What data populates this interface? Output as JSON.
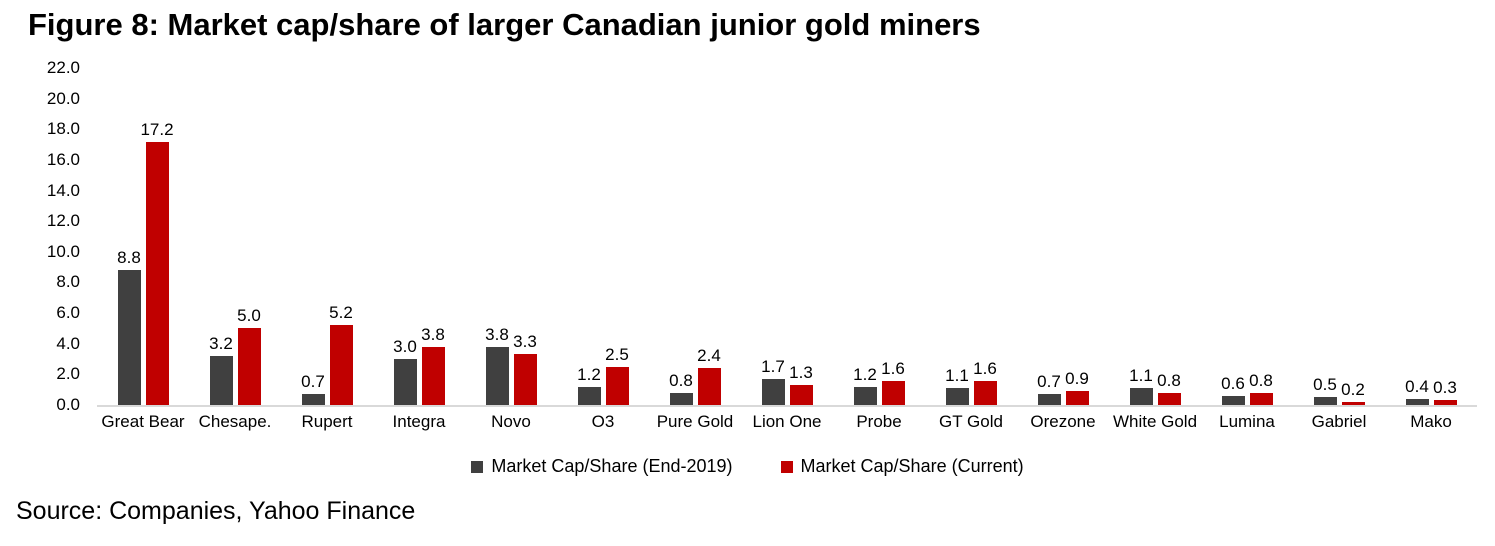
{
  "figure": {
    "title": "Figure 8: Market cap/share of larger Canadian junior gold miners",
    "source": "Source: Companies, Yahoo Finance"
  },
  "chart_data": {
    "type": "bar",
    "title": "Figure 8: Market cap/share of larger Canadian junior gold miners",
    "categories": [
      "Great Bear",
      "Chesape.",
      "Rupert",
      "Integra",
      "Novo",
      "O3",
      "Pure Gold",
      "Lion One",
      "Probe",
      "GT Gold",
      "Orezone",
      "White Gold",
      "Lumina",
      "Gabriel",
      "Mako"
    ],
    "series": [
      {
        "name": "Market Cap/Share (End-2019)",
        "color": "#404040",
        "values": [
          8.8,
          3.2,
          0.7,
          3.0,
          3.8,
          1.2,
          0.8,
          1.7,
          1.2,
          1.1,
          0.7,
          1.1,
          0.6,
          0.5,
          0.4
        ]
      },
      {
        "name": "Market Cap/Share (Current)",
        "color": "#c00000",
        "values": [
          17.2,
          5.0,
          5.2,
          3.8,
          3.3,
          2.5,
          2.4,
          1.3,
          1.6,
          1.6,
          0.9,
          0.8,
          0.8,
          0.2,
          0.3
        ]
      }
    ],
    "xlabel": "",
    "ylabel": "",
    "ylim": [
      0,
      22
    ],
    "ytick_step": 2,
    "ytick_labels": [
      "0.0",
      "2.0",
      "4.0",
      "6.0",
      "8.0",
      "10.0",
      "12.0",
      "14.0",
      "16.0",
      "18.0",
      "20.0",
      "22.0"
    ],
    "grid": false,
    "data_labels": true,
    "legend_position": "bottom",
    "axis_line_color": "#d9d9d9",
    "text_color": "#000000"
  }
}
